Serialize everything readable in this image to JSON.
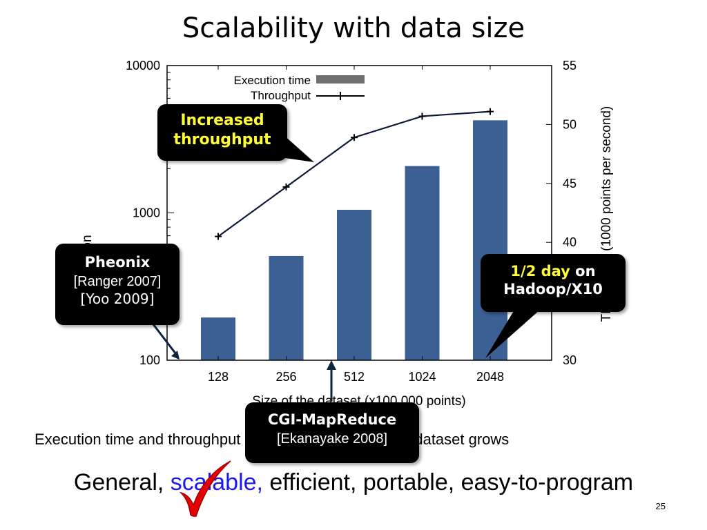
{
  "slide": {
    "title": "Scalability with data size",
    "caption": "Execution time and throughput of Pheonix as the size of dataset grows",
    "tagline_pre": "General, ",
    "tagline_highlight": "scalable,",
    "tagline_post": " efficient, portable, easy-to-program",
    "page_number": "25"
  },
  "callouts": {
    "throughput_line1": "Increased",
    "throughput_line2": "throughput",
    "pheonix_name": "Pheonix",
    "pheonix_ref1": "[Ranger 2007]",
    "pheonix_ref2": "[Yoo 2009]",
    "hadoop_highlight": "1/2 day",
    "hadoop_on": " on",
    "hadoop_platform": "Hadoop/X10",
    "cgi_name": "CGI-MapReduce",
    "cgi_ref": "[Ekanayake 2008]"
  },
  "chart_data": {
    "type": "bar",
    "categories": [
      "128",
      "256",
      "512",
      "1024",
      "2048"
    ],
    "xlabel": "Size of the dataset (x100,000 points)",
    "ylabel_left": "Execution time (second)",
    "ylabel_right": "Throughput (1000 points per second)",
    "y_left_scale": "log",
    "y_left_range": [
      100,
      10000
    ],
    "y_left_ticks": [
      "100",
      "1000",
      "10000"
    ],
    "y_right_range": [
      30,
      55
    ],
    "y_right_ticks": [
      "30",
      "40",
      "45",
      "50",
      "55"
    ],
    "legend_position": "top",
    "series": [
      {
        "name": "Execution time",
        "type": "bar",
        "axis": "left",
        "color": "#3c5f94",
        "values": [
          195,
          510,
          1050,
          2080,
          4250
        ]
      },
      {
        "name": "Throughput",
        "type": "line",
        "axis": "right",
        "color": "#0d1a3a",
        "values": [
          40.5,
          44.7,
          48.9,
          50.7,
          51.1
        ]
      }
    ]
  }
}
